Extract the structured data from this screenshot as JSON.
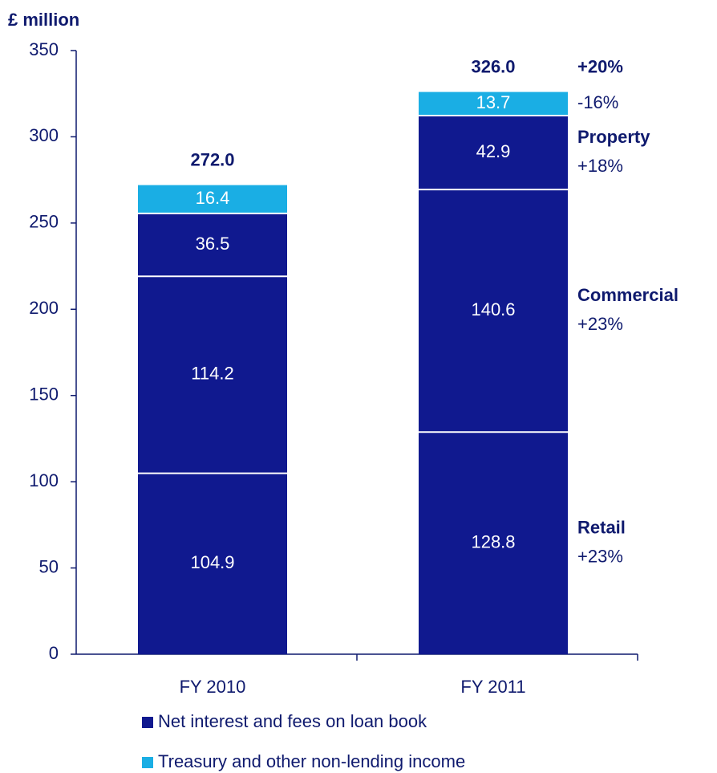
{
  "chart_data": {
    "type": "stacked_bar",
    "y_label": "£ million",
    "categories": [
      "FY 2010",
      "FY 2011"
    ],
    "series": [
      {
        "name": "Retail",
        "change": "+23%",
        "color": "#10198f",
        "values": [
          104.9,
          128.8
        ]
      },
      {
        "name": "Commercial",
        "change": "+23%",
        "color": "#10198f",
        "values": [
          114.2,
          140.6
        ]
      },
      {
        "name": "Property",
        "change": "+18%",
        "color": "#10198f",
        "values": [
          36.5,
          42.9
        ]
      },
      {
        "change": "-16%",
        "color": "#1aaee4",
        "values": [
          16.4,
          13.7
        ]
      }
    ],
    "totals": {
      "values": [
        272,
        326
      ],
      "value_labels": [
        "272.0",
        "326.0"
      ],
      "change": "+20%"
    },
    "legend": [
      {
        "label": "Net interest and fees on loan book",
        "color": "#10198f"
      },
      {
        "label": "Treasury and other non-lending income",
        "color": "#1aaee4"
      }
    ],
    "ylim": [
      0,
      350
    ],
    "yticks": [
      0,
      50,
      100,
      150,
      200,
      250,
      300,
      350
    ],
    "grid": false
  }
}
